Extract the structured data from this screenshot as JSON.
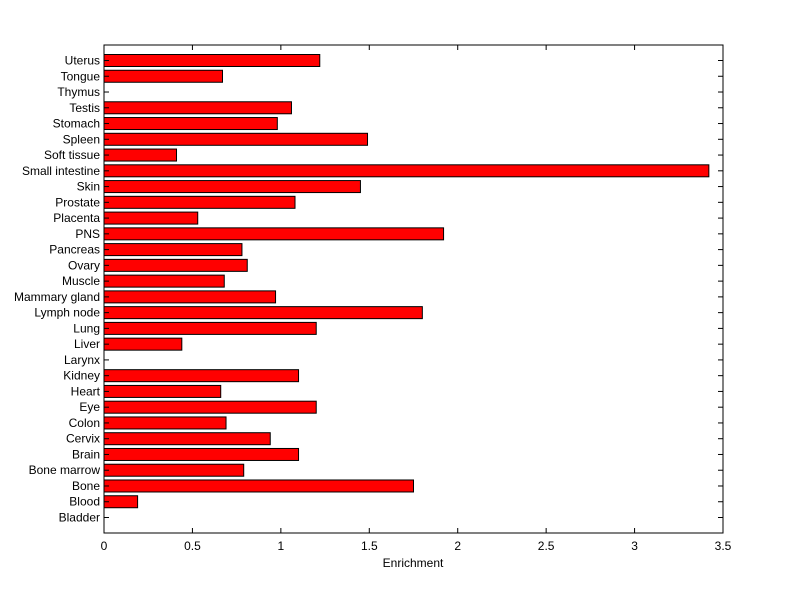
{
  "chart_data": {
    "type": "bar",
    "orientation": "horizontal",
    "title": "",
    "xlabel": "Enrichment",
    "ylabel": "",
    "xlim": [
      0,
      3.5
    ],
    "xticks": [
      0,
      0.5,
      1,
      1.5,
      2,
      2.5,
      3,
      3.5
    ],
    "xtick_labels": [
      "0",
      "0.5",
      "1",
      "1.5",
      "2",
      "2.5",
      "3",
      "3.5"
    ],
    "grid": false,
    "legend": "none",
    "bar_color": "#ff0000",
    "bar_edge_color": "#000000",
    "categories": [
      "Bladder",
      "Blood",
      "Bone",
      "Bone marrow",
      "Brain",
      "Cervix",
      "Colon",
      "Eye",
      "Heart",
      "Kidney",
      "Larynx",
      "Liver",
      "Lung",
      "Lymph node",
      "Mammary gland",
      "Muscle",
      "Ovary",
      "Pancreas",
      "PNS",
      "Placenta",
      "Prostate",
      "Skin",
      "Small intestine",
      "Soft tissue",
      "Spleen",
      "Stomach",
      "Testis",
      "Thymus",
      "Tongue",
      "Uterus"
    ],
    "values": [
      0,
      0.19,
      1.75,
      0.79,
      1.1,
      0.94,
      0.69,
      1.2,
      0.66,
      1.1,
      0,
      0.44,
      1.2,
      1.8,
      0.97,
      0.68,
      0.81,
      0.78,
      1.92,
      0.53,
      1.08,
      1.45,
      3.42,
      0.41,
      1.49,
      0.98,
      1.06,
      0,
      0.67,
      1.22
    ]
  }
}
